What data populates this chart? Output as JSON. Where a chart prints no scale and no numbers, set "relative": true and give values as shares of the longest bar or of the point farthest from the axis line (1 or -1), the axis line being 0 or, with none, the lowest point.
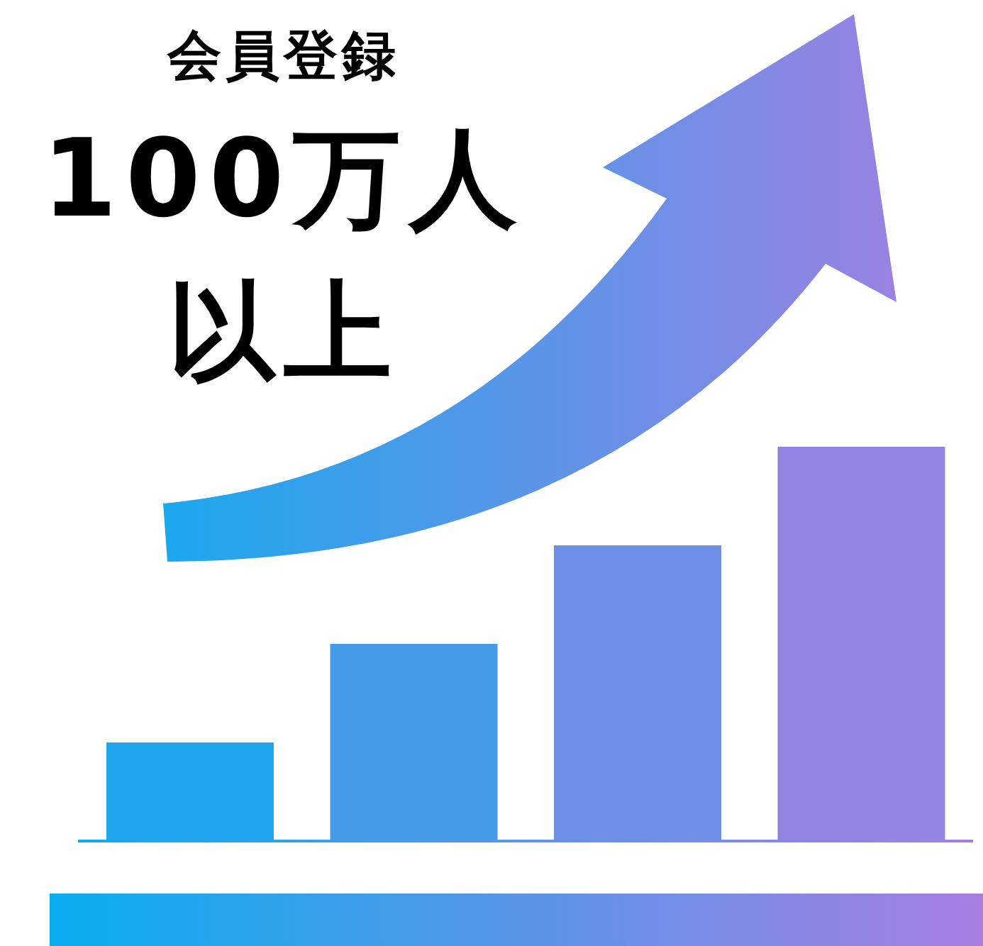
{
  "chart_data": {
    "type": "bar",
    "title": "会員登録",
    "subtitle": "100万人以上",
    "categories": [
      null,
      null,
      null,
      null
    ],
    "values": [
      0.25,
      0.5,
      0.75,
      1
    ],
    "colors": [
      "#20a6ed",
      "#469be9",
      "#6d8fe6",
      "#9384e2"
    ],
    "relative": true
  }
}
